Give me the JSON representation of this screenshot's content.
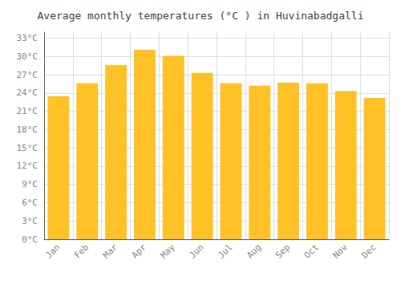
{
  "chart_data": {
    "type": "bar",
    "title": "Average monthly temperatures (°C ) in Huvinabadgalli",
    "categories": [
      "Jan",
      "Feb",
      "Mar",
      "Apr",
      "May",
      "Jun",
      "Jul",
      "Aug",
      "Sep",
      "Oct",
      "Nov",
      "Dec"
    ],
    "values": [
      23.5,
      25.6,
      28.6,
      31.1,
      30.1,
      27.3,
      25.6,
      25.2,
      25.7,
      25.6,
      24.3,
      23.2
    ],
    "color": "#FFC125",
    "ylim": [
      0,
      34
    ],
    "yticks": [
      {
        "value": 0,
        "label": "0°C"
      },
      {
        "value": 3,
        "label": "3°C"
      },
      {
        "value": 6,
        "label": "6°C"
      },
      {
        "value": 9,
        "label": "9°C"
      },
      {
        "value": 12,
        "label": "12°C"
      },
      {
        "value": 15,
        "label": "15°C"
      },
      {
        "value": 18,
        "label": "18°C"
      },
      {
        "value": 21,
        "label": "21°C"
      },
      {
        "value": 24,
        "label": "24°C"
      },
      {
        "value": 27,
        "label": "27°C"
      },
      {
        "value": 30,
        "label": "30°C"
      },
      {
        "value": 33,
        "label": "33°C"
      }
    ],
    "grid": true
  }
}
